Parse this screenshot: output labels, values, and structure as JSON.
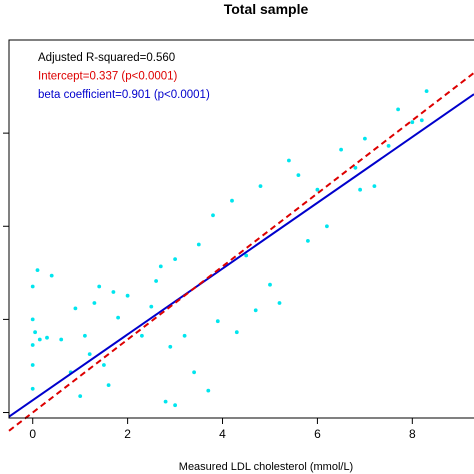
{
  "chart_data": {
    "type": "scatter",
    "title": "Total sample",
    "xlabel": "Measured LDL cholesterol (mmol/L)",
    "ylabel": "",
    "xlim": [
      -0.5,
      9.3
    ],
    "ylim": [
      -0.15,
      10.2
    ],
    "x_ticks": [
      0,
      2,
      4,
      6,
      8
    ],
    "x_tick_labels": [
      "0",
      "2",
      "4",
      "6",
      "8"
    ],
    "y_ticks": [
      0,
      2.55,
      5.1,
      7.65
    ],
    "grid": false,
    "point_color": "#00e5ee",
    "annotations": [
      {
        "text": "Adjusted R-squared=0.560",
        "color": "#000000"
      },
      {
        "text": "Intercept=0.337 (p<0.0001)",
        "color": "#dd0000"
      },
      {
        "text": "beta coefficient=0.901 (p<0.0001)",
        "color": "#0000cc"
      }
    ],
    "lines": [
      {
        "kind": "regression",
        "intercept": 0.337,
        "slope": 0.901,
        "color": "#0000cc",
        "style": "solid"
      },
      {
        "kind": "identity",
        "intercept": 0,
        "slope": 1,
        "color": "#dd0000",
        "style": "dashed"
      }
    ],
    "points": [
      [
        0.0,
        3.45
      ],
      [
        0.0,
        2.55
      ],
      [
        0.0,
        1.85
      ],
      [
        0.0,
        1.3
      ],
      [
        0.0,
        0.65
      ],
      [
        0.05,
        2.2
      ],
      [
        0.1,
        3.9
      ],
      [
        0.15,
        2.0
      ],
      [
        0.3,
        2.05
      ],
      [
        0.4,
        3.75
      ],
      [
        0.6,
        2.0
      ],
      [
        0.8,
        1.1
      ],
      [
        0.9,
        2.85
      ],
      [
        1.0,
        0.45
      ],
      [
        1.1,
        2.1
      ],
      [
        1.2,
        1.6
      ],
      [
        1.3,
        3.0
      ],
      [
        1.4,
        3.45
      ],
      [
        1.5,
        1.3
      ],
      [
        1.6,
        0.75
      ],
      [
        1.7,
        3.3
      ],
      [
        1.8,
        2.6
      ],
      [
        2.0,
        3.2
      ],
      [
        2.3,
        2.1
      ],
      [
        2.5,
        2.9
      ],
      [
        2.6,
        3.6
      ],
      [
        2.7,
        4.0
      ],
      [
        2.8,
        0.3
      ],
      [
        2.9,
        1.8
      ],
      [
        3.0,
        4.2
      ],
      [
        3.0,
        0.2
      ],
      [
        3.2,
        2.1
      ],
      [
        3.4,
        1.1
      ],
      [
        3.5,
        4.6
      ],
      [
        3.7,
        0.6
      ],
      [
        3.8,
        5.4
      ],
      [
        3.9,
        2.5
      ],
      [
        4.2,
        5.8
      ],
      [
        4.3,
        2.2
      ],
      [
        4.5,
        4.3
      ],
      [
        4.7,
        2.8
      ],
      [
        4.8,
        6.2
      ],
      [
        5.0,
        3.5
      ],
      [
        5.2,
        3.0
      ],
      [
        5.4,
        6.9
      ],
      [
        5.6,
        6.5
      ],
      [
        5.8,
        4.7
      ],
      [
        6.0,
        6.1
      ],
      [
        6.2,
        5.1
      ],
      [
        6.5,
        7.2
      ],
      [
        6.8,
        6.7
      ],
      [
        6.9,
        6.1
      ],
      [
        7.0,
        7.5
      ],
      [
        7.2,
        6.2
      ],
      [
        7.5,
        7.3
      ],
      [
        7.7,
        8.3
      ],
      [
        8.0,
        7.95
      ],
      [
        8.2,
        8.0
      ],
      [
        8.3,
        8.8
      ]
    ]
  }
}
